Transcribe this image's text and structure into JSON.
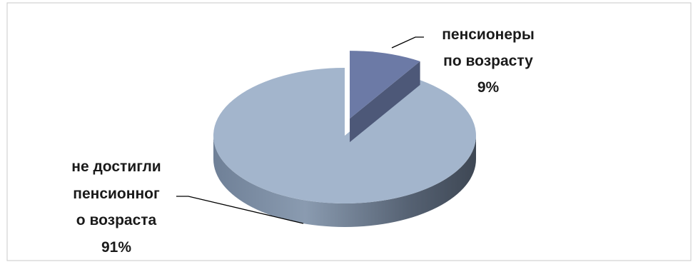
{
  "chart_data": {
    "type": "pie",
    "title": "",
    "slices": [
      {
        "label_lines": [
          "не достигли",
          "пенсионног",
          "о возраста"
        ],
        "percent_label": "91%",
        "value": 91,
        "color": "#a3b5cc"
      },
      {
        "label_lines": [
          "пенсионеры",
          "по возрасту"
        ],
        "percent_label": "9%",
        "value": 9,
        "color": "#6c7aa6",
        "exploded": true
      }
    ],
    "legend": "none",
    "style": "3d-exploded"
  }
}
